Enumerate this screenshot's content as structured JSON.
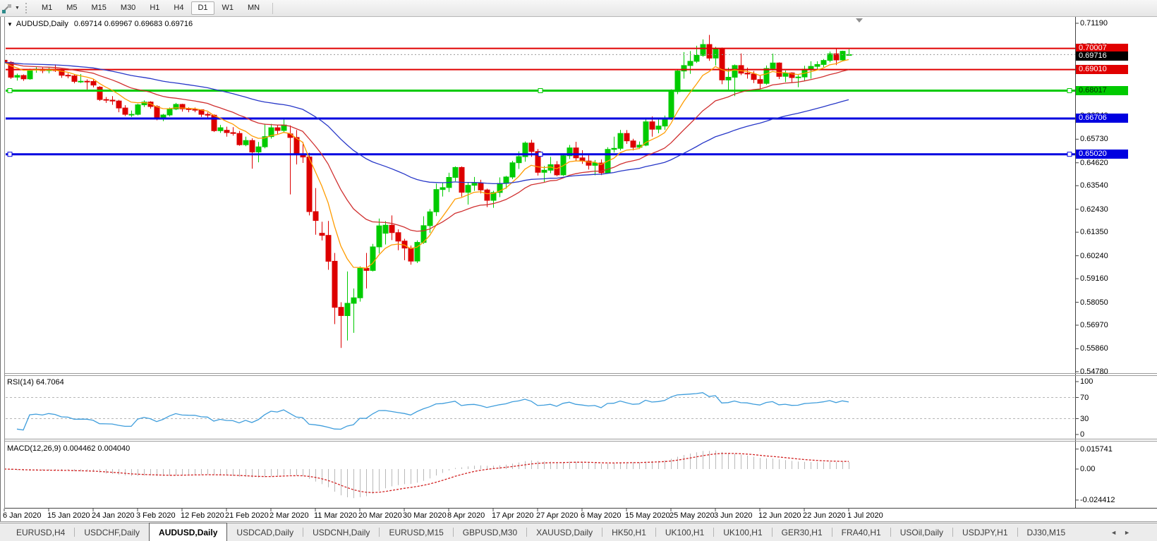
{
  "toolbar": {
    "timeframes": [
      "M1",
      "M5",
      "M15",
      "M30",
      "H1",
      "H4",
      "D1",
      "W1",
      "MN"
    ],
    "active_timeframe": "D1",
    "icons": {
      "pointer_tool": "pointer-tool-icon",
      "dropdown_caret": "chevron-down-icon"
    }
  },
  "chart": {
    "title_symbol": "AUDUSD,Daily",
    "ohlc_label": "0.69714 0.69967 0.69683 0.69716"
  },
  "rsi": {
    "label": "RSI(14) 64.7064",
    "levels": [
      "100",
      "70",
      "30",
      "0"
    ]
  },
  "macd": {
    "label": "MACD(12,26,9) 0.004462 0.004040",
    "axis_labels": [
      "0.015741",
      "0.00",
      "-0.024412"
    ]
  },
  "price_axis_ticks": [
    "0.71190",
    "0.70080",
    "0.69000",
    "0.67920",
    "0.66840",
    "0.65730",
    "0.64620",
    "0.63540",
    "0.62430",
    "0.61350",
    "0.60240",
    "0.59160",
    "0.58050",
    "0.56970",
    "0.55860",
    "0.54780"
  ],
  "date_axis": [
    "6 Jan 2020",
    "15 Jan 2020",
    "24 Jan 2020",
    "3 Feb 2020",
    "12 Feb 2020",
    "21 Feb 2020",
    "2 Mar 2020",
    "11 Mar 2020",
    "20 Mar 2020",
    "30 Mar 2020",
    "8 Apr 2020",
    "17 Apr 2020",
    "27 Apr 2020",
    "6 May 2020",
    "15 May 2020",
    "25 May 2020",
    "3 Jun 2020",
    "12 Jun 2020",
    "22 Jun 2020",
    "1 Jul 2020"
  ],
  "tabs": {
    "items": [
      "EURUSD,H4",
      "USDCHF,Daily",
      "AUDUSD,Daily",
      "USDCAD,Daily",
      "USDCNH,Daily",
      "EURUSD,M15",
      "GBPUSD,M30",
      "XAUUSD,Daily",
      "HK50,H1",
      "UK100,H1",
      "UK100,H1",
      "GER30,H1",
      "FRA40,H1",
      "USOil,Daily",
      "USDJPY,H1",
      "DJ30,M15"
    ],
    "active_index": 2,
    "scroll_left": "◄",
    "scroll_right": "►"
  },
  "chart_data": {
    "type": "candlestick",
    "symbol": "AUDUSD",
    "timeframe": "Daily",
    "ohlc_current_bar": {
      "open": 0.69714,
      "high": 0.69967,
      "low": 0.69683,
      "close": 0.69716
    },
    "current_price": 0.69716,
    "y_range": [
      0.5478,
      0.7119
    ],
    "up_color": "#00cb00",
    "down_color": "#dd0000",
    "ohlc": [
      [
        0.6945,
        0.6958,
        0.6925,
        0.6935
      ],
      [
        0.6935,
        0.6941,
        0.6857,
        0.6865
      ],
      [
        0.6865,
        0.6882,
        0.6849,
        0.6873
      ],
      [
        0.6873,
        0.6878,
        0.6848,
        0.6857
      ],
      [
        0.6857,
        0.6905,
        0.6853,
        0.69
      ],
      [
        0.69,
        0.6912,
        0.6886,
        0.6903
      ],
      [
        0.6903,
        0.6911,
        0.6884,
        0.6896
      ],
      [
        0.6896,
        0.6909,
        0.6883,
        0.6903
      ],
      [
        0.6903,
        0.6925,
        0.689,
        0.6896
      ],
      [
        0.6896,
        0.69,
        0.6862,
        0.6874
      ],
      [
        0.6874,
        0.6884,
        0.686,
        0.6871
      ],
      [
        0.6871,
        0.6878,
        0.6836,
        0.6845
      ],
      [
        0.6845,
        0.688,
        0.6838,
        0.6846
      ],
      [
        0.6846,
        0.6855,
        0.6807,
        0.6845
      ],
      [
        0.6845,
        0.6857,
        0.6817,
        0.6828
      ],
      [
        0.6818,
        0.6823,
        0.6753,
        0.676
      ],
      [
        0.676,
        0.6772,
        0.6744,
        0.6757
      ],
      [
        0.6757,
        0.6776,
        0.6735,
        0.6753
      ],
      [
        0.6753,
        0.6758,
        0.67,
        0.672
      ],
      [
        0.672,
        0.6733,
        0.6682,
        0.669
      ],
      [
        0.669,
        0.6708,
        0.6678,
        0.669
      ],
      [
        0.669,
        0.674,
        0.6685,
        0.6735
      ],
      [
        0.6735,
        0.6756,
        0.6725,
        0.6748
      ],
      [
        0.6748,
        0.6752,
        0.6717,
        0.6727
      ],
      [
        0.6727,
        0.6733,
        0.6662,
        0.667
      ],
      [
        0.667,
        0.6692,
        0.6658,
        0.6687
      ],
      [
        0.6687,
        0.6722,
        0.668,
        0.6715
      ],
      [
        0.6715,
        0.6744,
        0.671,
        0.6737
      ],
      [
        0.6737,
        0.674,
        0.6703,
        0.6716
      ],
      [
        0.6716,
        0.6723,
        0.67,
        0.6713
      ],
      [
        0.6713,
        0.6722,
        0.67,
        0.6712
      ],
      [
        0.6712,
        0.6714,
        0.6678,
        0.669
      ],
      [
        0.669,
        0.67,
        0.6673,
        0.6686
      ],
      [
        0.6686,
        0.669,
        0.6607,
        0.6613
      ],
      [
        0.6613,
        0.664,
        0.6603,
        0.6627
      ],
      [
        0.6615,
        0.6632,
        0.6585,
        0.6604
      ],
      [
        0.6604,
        0.663,
        0.659,
        0.66
      ],
      [
        0.66,
        0.6612,
        0.6542,
        0.6547
      ],
      [
        0.6547,
        0.6585,
        0.654,
        0.6567
      ],
      [
        0.6567,
        0.6577,
        0.6434,
        0.6513
      ],
      [
        0.6513,
        0.656,
        0.6464,
        0.6537
      ],
      [
        0.6537,
        0.6646,
        0.653,
        0.6585
      ],
      [
        0.6585,
        0.6645,
        0.6576,
        0.6627
      ],
      [
        0.6627,
        0.6639,
        0.6595,
        0.6614
      ],
      [
        0.6614,
        0.667,
        0.6604,
        0.664
      ],
      [
        0.6598,
        0.6638,
        0.6313,
        0.6581
      ],
      [
        0.6581,
        0.6616,
        0.6454,
        0.6503
      ],
      [
        0.6503,
        0.656,
        0.6461,
        0.6489
      ],
      [
        0.6489,
        0.6509,
        0.6214,
        0.6232
      ],
      [
        0.6232,
        0.6343,
        0.6123,
        0.619
      ],
      [
        0.613,
        0.6184,
        0.6096,
        0.612
      ],
      [
        0.612,
        0.6188,
        0.5958,
        0.5998
      ],
      [
        0.5998,
        0.6037,
        0.5702,
        0.5781
      ],
      [
        0.5781,
        0.5805,
        0.559,
        0.5742
      ],
      [
        0.5742,
        0.595,
        0.5625,
        0.58
      ],
      [
        0.58,
        0.587,
        0.5661,
        0.5826
      ],
      [
        0.5826,
        0.5974,
        0.5808,
        0.5965
      ],
      [
        0.5965,
        0.6037,
        0.587,
        0.5955
      ],
      [
        0.5955,
        0.608,
        0.595,
        0.6066
      ],
      [
        0.6066,
        0.6199,
        0.6035,
        0.6165
      ],
      [
        0.613,
        0.6187,
        0.6077,
        0.6168
      ],
      [
        0.6168,
        0.6214,
        0.6098,
        0.6133
      ],
      [
        0.6133,
        0.6148,
        0.605,
        0.6093
      ],
      [
        0.6093,
        0.6104,
        0.6003,
        0.606
      ],
      [
        0.606,
        0.6072,
        0.5982,
        0.5999
      ],
      [
        0.5999,
        0.6096,
        0.599,
        0.6087
      ],
      [
        0.6087,
        0.621,
        0.608,
        0.6166
      ],
      [
        0.6166,
        0.6244,
        0.6132,
        0.6231
      ],
      [
        0.6231,
        0.6364,
        0.6211,
        0.6336
      ],
      [
        0.6336,
        0.6368,
        0.6303,
        0.6345
      ],
      [
        0.6345,
        0.6415,
        0.6324,
        0.6393
      ],
      [
        0.6393,
        0.6445,
        0.6375,
        0.644
      ],
      [
        0.644,
        0.6445,
        0.6302,
        0.6323
      ],
      [
        0.6323,
        0.637,
        0.6265,
        0.6356
      ],
      [
        0.6356,
        0.6395,
        0.633,
        0.6365
      ],
      [
        0.6365,
        0.6382,
        0.6318,
        0.6334
      ],
      [
        0.6334,
        0.634,
        0.6253,
        0.6285
      ],
      [
        0.6285,
        0.633,
        0.625,
        0.6322
      ],
      [
        0.6322,
        0.6393,
        0.63,
        0.6365
      ],
      [
        0.6365,
        0.64,
        0.634,
        0.6395
      ],
      [
        0.6395,
        0.6471,
        0.6385,
        0.6462
      ],
      [
        0.6462,
        0.6516,
        0.6433,
        0.6491
      ],
      [
        0.6491,
        0.6562,
        0.6467,
        0.6555
      ],
      [
        0.6555,
        0.657,
        0.649,
        0.6515
      ],
      [
        0.6515,
        0.6527,
        0.6402,
        0.6417
      ],
      [
        0.6417,
        0.6447,
        0.6372,
        0.6427
      ],
      [
        0.6427,
        0.649,
        0.6413,
        0.6453
      ],
      [
        0.6453,
        0.647,
        0.6399,
        0.6405
      ],
      [
        0.6405,
        0.6505,
        0.64,
        0.6495
      ],
      [
        0.6495,
        0.6546,
        0.648,
        0.6532
      ],
      [
        0.6532,
        0.6561,
        0.6473,
        0.6485
      ],
      [
        0.6485,
        0.6521,
        0.6457,
        0.647
      ],
      [
        0.647,
        0.6506,
        0.643,
        0.645
      ],
      [
        0.645,
        0.6475,
        0.6403,
        0.6461
      ],
      [
        0.6461,
        0.6478,
        0.6404,
        0.6415
      ],
      [
        0.6415,
        0.6535,
        0.6413,
        0.6525
      ],
      [
        0.6525,
        0.6585,
        0.651,
        0.653
      ],
      [
        0.653,
        0.6617,
        0.652,
        0.66
      ],
      [
        0.66,
        0.6616,
        0.6551,
        0.6565
      ],
      [
        0.6565,
        0.6575,
        0.652,
        0.6535
      ],
      [
        0.6535,
        0.6562,
        0.6527,
        0.6545
      ],
      [
        0.6545,
        0.6672,
        0.654,
        0.6655
      ],
      [
        0.6655,
        0.668,
        0.6585,
        0.662
      ],
      [
        0.662,
        0.6666,
        0.6601,
        0.6635
      ],
      [
        0.6635,
        0.6684,
        0.6617,
        0.6667
      ],
      [
        0.6667,
        0.6808,
        0.6664,
        0.6797
      ],
      [
        0.6797,
        0.6899,
        0.6785,
        0.6894
      ],
      [
        0.6894,
        0.6983,
        0.6858,
        0.692
      ],
      [
        0.692,
        0.6988,
        0.6881,
        0.694
      ],
      [
        0.694,
        0.7013,
        0.6932,
        0.6968
      ],
      [
        0.6968,
        0.7043,
        0.6961,
        0.7019
      ],
      [
        0.7019,
        0.7064,
        0.6942,
        0.6955
      ],
      [
        0.6955,
        0.7008,
        0.692,
        0.6999
      ],
      [
        0.6999,
        0.7005,
        0.6832,
        0.6852
      ],
      [
        0.6852,
        0.691,
        0.68,
        0.6865
      ],
      [
        0.6865,
        0.6925,
        0.6776,
        0.692
      ],
      [
        0.692,
        0.6977,
        0.6875,
        0.6884
      ],
      [
        0.6884,
        0.691,
        0.6858,
        0.688
      ],
      [
        0.688,
        0.6894,
        0.6837,
        0.6854
      ],
      [
        0.6854,
        0.6872,
        0.681,
        0.6836
      ],
      [
        0.6836,
        0.692,
        0.683,
        0.6906
      ],
      [
        0.6906,
        0.6976,
        0.6897,
        0.6932
      ],
      [
        0.6932,
        0.6935,
        0.6856,
        0.6869
      ],
      [
        0.6869,
        0.6897,
        0.6842,
        0.6885
      ],
      [
        0.6885,
        0.6888,
        0.6841,
        0.6863
      ],
      [
        0.6863,
        0.6875,
        0.6818,
        0.6866
      ],
      [
        0.6866,
        0.6919,
        0.6849,
        0.6903
      ],
      [
        0.6903,
        0.694,
        0.6858,
        0.6916
      ],
      [
        0.6916,
        0.694,
        0.6901,
        0.6925
      ],
      [
        0.6925,
        0.6951,
        0.6912,
        0.6944
      ],
      [
        0.6944,
        0.6986,
        0.6935,
        0.6975
      ],
      [
        0.6975,
        0.6998,
        0.6922,
        0.6946
      ],
      [
        0.6946,
        0.699,
        0.694,
        0.6987
      ],
      [
        0.69714,
        0.69967,
        0.69683,
        0.69716
      ]
    ],
    "hlines": [
      {
        "price": 0.70007,
        "label": "0.70007",
        "color": "#e00000",
        "width": 2,
        "selected": false,
        "text_color": "#ffffff"
      },
      {
        "price": 0.6901,
        "label": "0.69010",
        "color": "#e00000",
        "width": 2,
        "selected": false,
        "text_color": "#ffffff"
      },
      {
        "price": 0.68017,
        "label": "0.68017",
        "color": "#00ca00",
        "width": 3,
        "selected": true,
        "text_color": "#003300"
      },
      {
        "price": 0.66706,
        "label": "0.66706",
        "color": "#0000e0",
        "width": 3,
        "selected": false,
        "text_color": "#ffffff"
      },
      {
        "price": 0.6502,
        "label": "0.65020",
        "color": "#0000e0",
        "width": 3,
        "selected": true,
        "text_color": "#ffffff"
      }
    ],
    "indicators": {
      "ma_fast": {
        "period": 8,
        "color": "#ff9c00"
      },
      "ma_medium": {
        "period": 21,
        "color": "#d03030"
      },
      "ma_slow": {
        "period": 55,
        "color": "#2737c8"
      },
      "rsi": {
        "period": 14,
        "value": 64.7064,
        "color": "#3e9ddc",
        "levels": [
          70,
          30
        ]
      },
      "macd": {
        "fast": 12,
        "slow": 26,
        "signal": 9,
        "value": 0.004462,
        "signal_value": 0.00404,
        "hist_color": "#b9b9b9",
        "signal_color": "#d22222"
      }
    }
  }
}
